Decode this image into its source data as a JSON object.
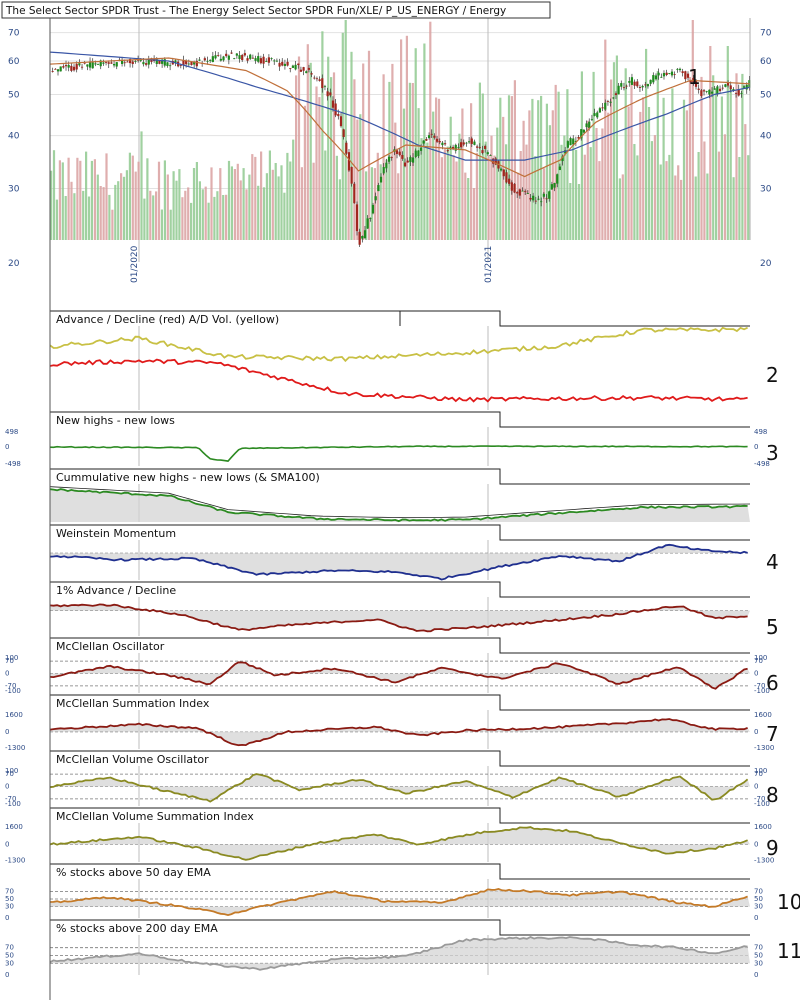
{
  "colors": {
    "price_axis": "#2c4a86",
    "candle_up": "#1e8a1e",
    "candle_down": "#a0261e",
    "volume_up": "#8fc98f",
    "volume_down": "#d9a0a0",
    "sma_long": "#3a56a6",
    "sma_short": "#c0703a",
    "advance_decline": "#e01a1a",
    "ad_volume": "#c8c044",
    "new_highs_lows": "#2c8a22",
    "weinstein": "#1f2f8f",
    "advance_decline_1pct": "#8a1a12",
    "mcclellan": "#8a1a12",
    "volume_osc": "#8a8a22",
    "ema50": "#c47a28",
    "ema200": "#9a9a9a",
    "fill_grey": "#d4d4d4",
    "fill_pink": "#f0c4bc"
  },
  "chart_data": [
    {
      "type": "candlestick",
      "panel_number": "1",
      "title": "The Select Sector SPDR Trust - The Energy Select Sector SPDR Fun/XLE/ P_US_ENERGY / Energy",
      "x_labels": [
        "01/2020",
        "01/2021"
      ],
      "yscale": "log",
      "ylim": [
        20,
        75
      ],
      "y_ticks": [
        20,
        30,
        40,
        50,
        60,
        70
      ],
      "x_start": "2019-06",
      "x_end": "2021-06",
      "price_path": [
        [
          0,
          57
        ],
        [
          8,
          59
        ],
        [
          16,
          60
        ],
        [
          24,
          59
        ],
        [
          28,
          61
        ],
        [
          31,
          62
        ],
        [
          37,
          60
        ],
        [
          42,
          58
        ],
        [
          45,
          55
        ],
        [
          47,
          50
        ],
        [
          49,
          42
        ],
        [
          51,
          30
        ],
        [
          52,
          22
        ],
        [
          54,
          26
        ],
        [
          56,
          33
        ],
        [
          58,
          37
        ],
        [
          60,
          34
        ],
        [
          62,
          37
        ],
        [
          64,
          40
        ],
        [
          66,
          38
        ],
        [
          68,
          37
        ],
        [
          70,
          39
        ],
        [
          72,
          38
        ],
        [
          74,
          36
        ],
        [
          76,
          33
        ],
        [
          78,
          30
        ],
        [
          80,
          29
        ],
        [
          82,
          28
        ],
        [
          84,
          29
        ],
        [
          85,
          31
        ],
        [
          87,
          38
        ],
        [
          89,
          40
        ],
        [
          91,
          43
        ],
        [
          92,
          45
        ],
        [
          94,
          48
        ],
        [
          96,
          52
        ],
        [
          98,
          54
        ],
        [
          100,
          52
        ],
        [
          102,
          56
        ],
        [
          104,
          55
        ],
        [
          106,
          57
        ],
        [
          108,
          54
        ],
        [
          110,
          50
        ],
        [
          112,
          51
        ],
        [
          114,
          53
        ],
        [
          116,
          50
        ],
        [
          118,
          54
        ]
      ],
      "sma_long_path": [
        [
          0,
          63
        ],
        [
          20,
          60
        ],
        [
          35,
          52
        ],
        [
          52,
          44
        ],
        [
          62,
          38
        ],
        [
          70,
          35
        ],
        [
          80,
          35
        ],
        [
          88,
          37
        ],
        [
          96,
          41
        ],
        [
          104,
          45
        ],
        [
          112,
          50
        ],
        [
          118,
          52
        ]
      ],
      "sma_short_path": [
        [
          0,
          59
        ],
        [
          20,
          61
        ],
        [
          33,
          57
        ],
        [
          40,
          51
        ],
        [
          46,
          41
        ],
        [
          52,
          33
        ],
        [
          60,
          38
        ],
        [
          70,
          37
        ],
        [
          80,
          32
        ],
        [
          86,
          35
        ],
        [
          92,
          43
        ],
        [
          100,
          49
        ],
        [
          108,
          54
        ],
        [
          118,
          53
        ]
      ]
    },
    {
      "type": "line",
      "panel_number": "2",
      "title": "Advance / Decline (red) A/D Vol. (yellow)",
      "series": [
        {
          "name": "Advance / Decline",
          "color_key": "advance_decline",
          "path": [
            [
              0,
              0.12
            ],
            [
              15,
              0.2
            ],
            [
              28,
              0.15
            ],
            [
              50,
              -0.6
            ],
            [
              70,
              -0.75
            ],
            [
              85,
              -0.72
            ],
            [
              100,
              -0.7
            ],
            [
              118,
              -0.75
            ]
          ]
        },
        {
          "name": "A/D Vol.",
          "color_key": "ad_volume",
          "path": [
            [
              0,
              0.55
            ],
            [
              15,
              0.75
            ],
            [
              30,
              0.3
            ],
            [
              50,
              0.25
            ],
            [
              70,
              0.4
            ],
            [
              85,
              0.55
            ],
            [
              100,
              0.95
            ],
            [
              110,
              0.95
            ],
            [
              118,
              0.98
            ]
          ]
        }
      ]
    },
    {
      "type": "line",
      "panel_number": "3",
      "title": "New highs - new lows",
      "y_ticks": [
        498,
        0,
        -498
      ],
      "series": [
        {
          "name": "New highs - new lows",
          "color_key": "new_highs_lows",
          "path": [
            [
              0,
              0
            ],
            [
              25,
              -20
            ],
            [
              27,
              -350
            ],
            [
              30,
              -420
            ],
            [
              32,
              -40
            ],
            [
              60,
              15
            ],
            [
              80,
              20
            ],
            [
              118,
              10
            ]
          ]
        }
      ]
    },
    {
      "type": "area",
      "title": "Cummulative new highs - new lows (& SMA100)",
      "series": [
        {
          "name": "Cummulative new highs - new lows",
          "color_key": "new_highs_lows",
          "path": [
            [
              0,
              0.95
            ],
            [
              20,
              0.75
            ],
            [
              30,
              0.25
            ],
            [
              45,
              0.05
            ],
            [
              60,
              0.0
            ],
            [
              70,
              0.02
            ],
            [
              80,
              0.15
            ],
            [
              100,
              0.4
            ],
            [
              118,
              0.42
            ]
          ]
        }
      ]
    },
    {
      "type": "area",
      "panel_number": "4",
      "title": "Weinstein Momentum",
      "series": [
        {
          "name": "Weinstein Momentum",
          "color_key": "weinstein",
          "path": [
            [
              0,
              -0.1
            ],
            [
              12,
              -0.25
            ],
            [
              24,
              -0.2
            ],
            [
              35,
              -0.8
            ],
            [
              48,
              -0.65
            ],
            [
              58,
              -0.7
            ],
            [
              66,
              -0.95
            ],
            [
              76,
              -0.5
            ],
            [
              86,
              -0.1
            ],
            [
              96,
              -0.3
            ],
            [
              104,
              0.3
            ],
            [
              110,
              0.1
            ],
            [
              118,
              0.0
            ]
          ]
        }
      ]
    },
    {
      "type": "area",
      "panel_number": "5",
      "title": "1% Advance / Decline",
      "series": [
        {
          "name": "1% Advance / Decline",
          "color_key": "advance_decline_1pct",
          "path": [
            [
              0,
              0.55
            ],
            [
              10,
              0.6
            ],
            [
              22,
              0.1
            ],
            [
              32,
              -0.7
            ],
            [
              40,
              -0.45
            ],
            [
              55,
              -0.15
            ],
            [
              62,
              -0.75
            ],
            [
              72,
              -0.55
            ],
            [
              85,
              -0.2
            ],
            [
              95,
              0.1
            ],
            [
              106,
              0.55
            ],
            [
              112,
              -0.1
            ],
            [
              118,
              0.05
            ]
          ]
        }
      ]
    },
    {
      "type": "area",
      "panel_number": "6",
      "title": "McClellan Oscillator",
      "y_ticks": [
        100,
        70,
        0,
        -70,
        -100
      ],
      "series": [
        {
          "name": "McClellan Oscillator",
          "color_key": "mcclellan",
          "path": [
            [
              0,
              -20
            ],
            [
              10,
              40
            ],
            [
              20,
              -10
            ],
            [
              27,
              -60
            ],
            [
              32,
              70
            ],
            [
              38,
              -10
            ],
            [
              48,
              30
            ],
            [
              58,
              -50
            ],
            [
              66,
              30
            ],
            [
              76,
              -30
            ],
            [
              86,
              60
            ],
            [
              96,
              -60
            ],
            [
              106,
              40
            ],
            [
              112,
              -90
            ],
            [
              118,
              40
            ]
          ]
        }
      ]
    },
    {
      "type": "area",
      "panel_number": "7",
      "title": "McClellan Summation Index",
      "y_ticks": [
        1600,
        0,
        -1300
      ],
      "series": [
        {
          "name": "McClellan Summation Index",
          "color_key": "mcclellan",
          "path": [
            [
              0,
              200
            ],
            [
              15,
              600
            ],
            [
              25,
              300
            ],
            [
              32,
              -1200
            ],
            [
              40,
              0
            ],
            [
              55,
              400
            ],
            [
              62,
              -300
            ],
            [
              70,
              100
            ],
            [
              85,
              350
            ],
            [
              96,
              700
            ],
            [
              104,
              1050
            ],
            [
              112,
              200
            ],
            [
              118,
              300
            ]
          ]
        }
      ]
    },
    {
      "type": "area",
      "panel_number": "8",
      "title": "McClellan Volume Oscillator",
      "y_ticks": [
        100,
        70,
        0,
        -70,
        -100
      ],
      "series": [
        {
          "name": "McClellan Volume Oscillator",
          "color_key": "volume_osc",
          "path": [
            [
              0,
              0
            ],
            [
              10,
              50
            ],
            [
              20,
              -30
            ],
            [
              27,
              -80
            ],
            [
              35,
              75
            ],
            [
              42,
              -20
            ],
            [
              52,
              40
            ],
            [
              60,
              -40
            ],
            [
              70,
              30
            ],
            [
              78,
              -60
            ],
            [
              86,
              50
            ],
            [
              96,
              -60
            ],
            [
              106,
              60
            ],
            [
              112,
              -80
            ],
            [
              118,
              50
            ]
          ]
        }
      ]
    },
    {
      "type": "area",
      "panel_number": "9",
      "title": "McClellan Volume Summation Index",
      "y_ticks": [
        1600,
        0,
        -1300
      ],
      "series": [
        {
          "name": "McClellan Volume Summation Index",
          "color_key": "volume_osc",
          "path": [
            [
              0,
              0
            ],
            [
              15,
              600
            ],
            [
              25,
              -300
            ],
            [
              33,
              -1200
            ],
            [
              45,
              100
            ],
            [
              55,
              800
            ],
            [
              62,
              0
            ],
            [
              72,
              900
            ],
            [
              80,
              1350
            ],
            [
              88,
              1050
            ],
            [
              96,
              100
            ],
            [
              104,
              -700
            ],
            [
              112,
              -300
            ],
            [
              118,
              300
            ]
          ]
        }
      ]
    },
    {
      "type": "area",
      "panel_number": "10",
      "title": "% stocks above 50 day EMA",
      "y_ticks": [
        70,
        50,
        30,
        0
      ],
      "series": [
        {
          "name": "% stocks above 50 day EMA",
          "color_key": "ema50",
          "path": [
            [
              0,
              40
            ],
            [
              10,
              55
            ],
            [
              20,
              35
            ],
            [
              30,
              10
            ],
            [
              40,
              45
            ],
            [
              48,
              70
            ],
            [
              56,
              45
            ],
            [
              66,
              40
            ],
            [
              74,
              75
            ],
            [
              80,
              72
            ],
            [
              88,
              60
            ],
            [
              96,
              70
            ],
            [
              106,
              40
            ],
            [
              112,
              30
            ],
            [
              118,
              60
            ]
          ]
        }
      ]
    },
    {
      "type": "area",
      "panel_number": "11",
      "title": "% stocks above 200 day EMA",
      "y_ticks": [
        70,
        50,
        30,
        0
      ],
      "series": [
        {
          "name": "% stocks above 200 day EMA",
          "color_key": "ema200",
          "path": [
            [
              0,
              35
            ],
            [
              15,
              55
            ],
            [
              25,
              30
            ],
            [
              35,
              15
            ],
            [
              48,
              40
            ],
            [
              60,
              48
            ],
            [
              70,
              90
            ],
            [
              80,
              95
            ],
            [
              90,
              95
            ],
            [
              98,
              78
            ],
            [
              106,
              70
            ],
            [
              112,
              55
            ],
            [
              118,
              75
            ]
          ]
        }
      ]
    }
  ]
}
